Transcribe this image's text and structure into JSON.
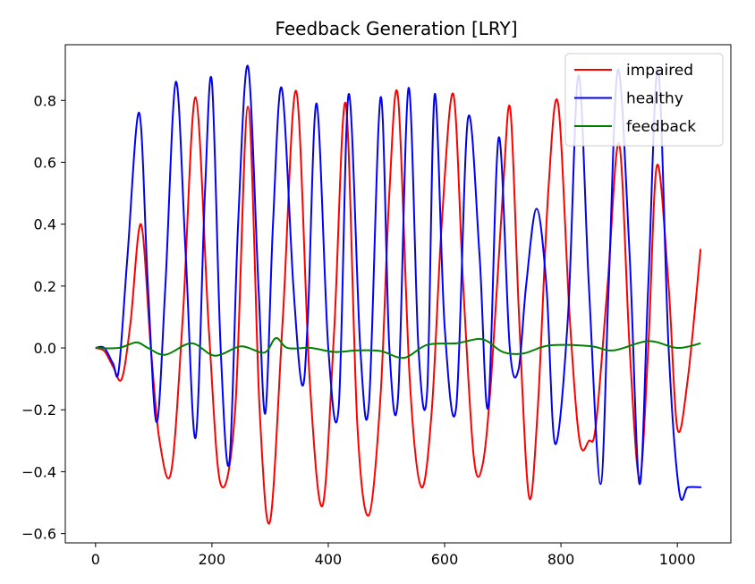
{
  "chart_data": {
    "type": "line",
    "title": "Feedback Generation [LRY]",
    "xlabel": "",
    "ylabel": "",
    "xlim": [
      -52,
      1092
    ],
    "ylim": [
      -0.63,
      0.98
    ],
    "xticks": [
      0,
      200,
      400,
      600,
      800,
      1000
    ],
    "xtick_labels": [
      "0",
      "200",
      "400",
      "600",
      "800",
      "1000"
    ],
    "yticks": [
      -0.6,
      -0.4,
      -0.2,
      0.0,
      0.2,
      0.4,
      0.6,
      0.8
    ],
    "ytick_labels": [
      "−0.6",
      "−0.4",
      "−0.2",
      "0.0",
      "0.2",
      "0.4",
      "0.6",
      "0.8"
    ],
    "grid": false,
    "legend_position": "upper right",
    "series": [
      {
        "name": "impaired",
        "color": "#ff0000",
        "x": [
          0,
          15,
          30,
          45,
          60,
          78,
          95,
          110,
          130,
          150,
          172,
          195,
          215,
          240,
          262,
          282,
          300,
          322,
          345,
          368,
          390,
          410,
          430,
          450,
          470,
          490,
          505,
          520,
          540,
          560,
          578,
          595,
          615,
          632,
          650,
          665,
          680,
          700,
          713,
          728,
          745,
          760,
          778,
          795,
          815,
          832,
          848,
          860,
          880,
          900,
          918,
          935,
          950,
          965,
          985,
          1000,
          1018,
          1040
        ],
        "y": [
          0.0,
          -0.01,
          -0.06,
          -0.1,
          0.08,
          0.4,
          0.0,
          -0.3,
          -0.4,
          0.1,
          0.81,
          0.05,
          -0.44,
          -0.2,
          0.78,
          -0.2,
          -0.56,
          0.1,
          0.83,
          -0.1,
          -0.51,
          0.05,
          0.79,
          -0.25,
          -0.54,
          -0.15,
          0.5,
          0.81,
          -0.1,
          -0.45,
          -0.2,
          0.4,
          0.82,
          0.2,
          -0.35,
          -0.38,
          -0.1,
          0.5,
          0.77,
          0.1,
          -0.48,
          -0.2,
          0.5,
          0.79,
          0.1,
          -0.3,
          -0.3,
          -0.25,
          0.2,
          0.66,
          0.0,
          -0.42,
          0.0,
          0.59,
          0.2,
          -0.26,
          -0.1,
          0.32
        ]
      },
      {
        "name": "healthy",
        "color": "#0000ff",
        "x": [
          0,
          15,
          30,
          40,
          55,
          75,
          90,
          105,
          120,
          138,
          155,
          172,
          188,
          200,
          215,
          230,
          245,
          262,
          280,
          292,
          305,
          320,
          340,
          355,
          365,
          380,
          400,
          418,
          435,
          455,
          470,
          490,
          505,
          520,
          538,
          555,
          570,
          583,
          600,
          620,
          640,
          660,
          675,
          693,
          712,
          727,
          740,
          758,
          775,
          790,
          812,
          830,
          848,
          868,
          882,
          898,
          918,
          935,
          950,
          967,
          985,
          1003,
          1018,
          1038,
          1040
        ],
        "y": [
          0.0,
          0.0,
          -0.05,
          -0.07,
          0.3,
          0.76,
          0.2,
          -0.24,
          0.2,
          0.86,
          0.3,
          -0.29,
          0.5,
          0.86,
          0.0,
          -0.37,
          0.4,
          0.91,
          0.2,
          -0.21,
          0.4,
          0.84,
          0.2,
          -0.12,
          0.1,
          0.79,
          0.0,
          -0.19,
          0.82,
          0.0,
          -0.18,
          0.81,
          0.0,
          -0.16,
          0.84,
          0.0,
          -0.14,
          0.82,
          0.07,
          -0.19,
          0.74,
          0.3,
          -0.19,
          0.68,
          0.0,
          -0.07,
          0.2,
          0.45,
          0.2,
          -0.31,
          0.1,
          0.88,
          0.2,
          -0.44,
          0.2,
          0.9,
          0.3,
          -0.44,
          0.2,
          0.9,
          0.0,
          -0.46,
          -0.45,
          -0.45,
          -0.45
        ]
      },
      {
        "name": "feedback",
        "color": "#008000",
        "x": [
          0,
          40,
          70,
          90,
          120,
          165,
          205,
          250,
          290,
          310,
          330,
          370,
          410,
          450,
          490,
          530,
          570,
          620,
          665,
          700,
          735,
          780,
          850,
          890,
          950,
          1000,
          1040
        ],
        "y": [
          0.0,
          0.0,
          0.018,
          0.0,
          -0.022,
          0.015,
          -0.025,
          0.005,
          -0.015,
          0.032,
          0.0,
          0.0,
          -0.013,
          -0.008,
          -0.01,
          -0.032,
          0.01,
          0.015,
          0.028,
          -0.013,
          -0.018,
          0.008,
          0.006,
          -0.008,
          0.022,
          0.0,
          0.015
        ]
      }
    ]
  }
}
